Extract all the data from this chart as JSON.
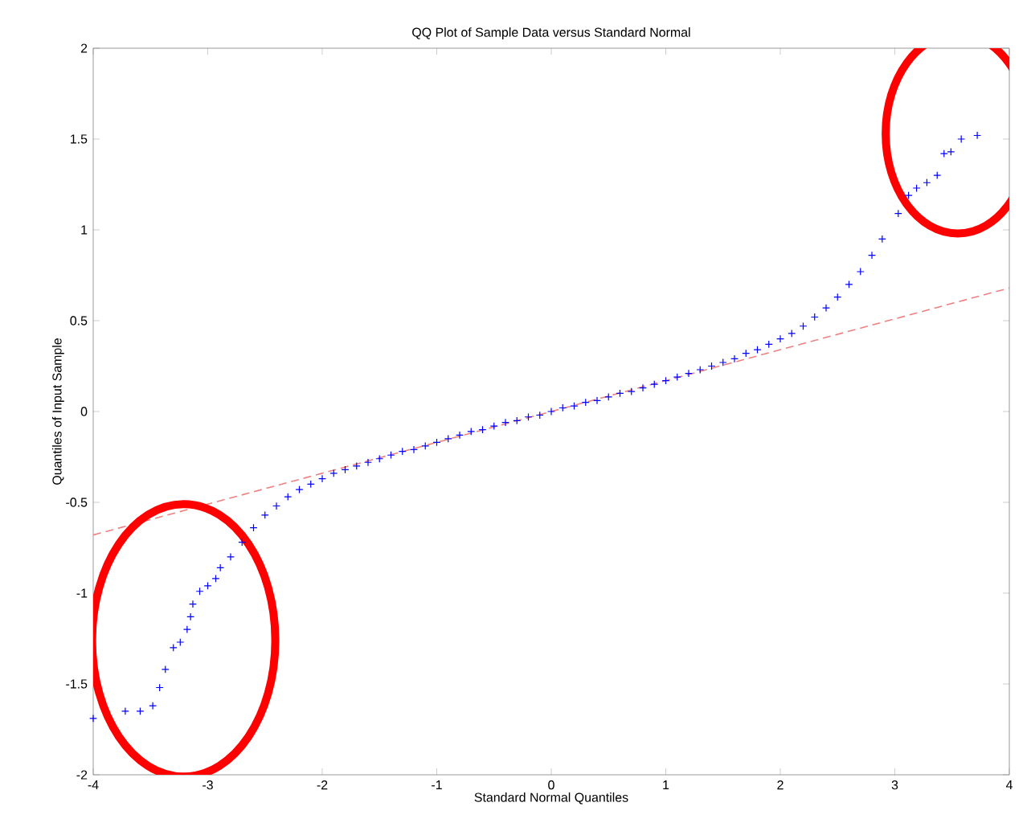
{
  "chart_data": {
    "type": "scatter",
    "title": "QQ Plot of Sample Data versus Standard Normal",
    "xlabel": "Standard Normal Quantiles",
    "ylabel": "Quantiles of Input Sample",
    "xlim": [
      -4,
      4
    ],
    "ylim": [
      -2,
      2
    ],
    "xticks": [
      -4,
      -3,
      -2,
      -1,
      0,
      1,
      2,
      3,
      4
    ],
    "yticks": [
      -2,
      -1.5,
      -1,
      -0.5,
      0,
      0.5,
      1,
      1.5,
      2
    ],
    "series": [
      {
        "color": "#0000ff",
        "marker": "cross",
        "x": [
          -4.0,
          -3.72,
          -3.59,
          -3.48,
          -3.42,
          -3.37,
          -3.3,
          -3.24,
          -3.18,
          -3.15,
          -3.13,
          -3.07,
          -3.0,
          -2.93,
          -2.89,
          -2.8,
          -2.7,
          -2.6,
          -2.5,
          -2.4,
          -2.3,
          -2.2,
          -2.1,
          -2.0,
          -1.9,
          -1.8,
          -1.7,
          -1.6,
          -1.5,
          -1.4,
          -1.3,
          -1.2,
          -1.1,
          -1.0,
          -0.9,
          -0.8,
          -0.7,
          -0.6,
          -0.5,
          -0.4,
          -0.3,
          -0.2,
          -0.1,
          0.0,
          0.1,
          0.2,
          0.3,
          0.4,
          0.5,
          0.6,
          0.7,
          0.8,
          0.9,
          1.0,
          1.1,
          1.2,
          1.3,
          1.4,
          1.5,
          1.6,
          1.7,
          1.8,
          1.9,
          2.0,
          2.1,
          2.2,
          2.3,
          2.4,
          2.5,
          2.6,
          2.7,
          2.8,
          2.89,
          3.03,
          3.12,
          3.19,
          3.28,
          3.37,
          3.43,
          3.49,
          3.58,
          3.72
        ],
        "values": [
          -1.69,
          -1.65,
          -1.65,
          -1.62,
          -1.52,
          -1.42,
          -1.3,
          -1.27,
          -1.2,
          -1.13,
          -1.06,
          -0.99,
          -0.96,
          -0.92,
          -0.86,
          -0.8,
          -0.72,
          -0.64,
          -0.57,
          -0.52,
          -0.47,
          -0.43,
          -0.4,
          -0.37,
          -0.34,
          -0.32,
          -0.3,
          -0.28,
          -0.26,
          -0.24,
          -0.22,
          -0.21,
          -0.19,
          -0.17,
          -0.15,
          -0.13,
          -0.11,
          -0.1,
          -0.08,
          -0.06,
          -0.05,
          -0.03,
          -0.02,
          0.0,
          0.02,
          0.03,
          0.05,
          0.06,
          0.08,
          0.1,
          0.11,
          0.13,
          0.15,
          0.17,
          0.19,
          0.21,
          0.23,
          0.25,
          0.27,
          0.29,
          0.32,
          0.34,
          0.37,
          0.4,
          0.43,
          0.47,
          0.52,
          0.57,
          0.63,
          0.7,
          0.77,
          0.86,
          0.95,
          1.09,
          1.19,
          1.23,
          1.26,
          1.3,
          1.42,
          1.43,
          1.5,
          1.52
        ]
      },
      {
        "type": "line",
        "color": "#f08080",
        "line_style": "dashed",
        "x": [
          -4,
          4
        ],
        "values": [
          -0.68,
          0.68
        ]
      }
    ]
  }
}
